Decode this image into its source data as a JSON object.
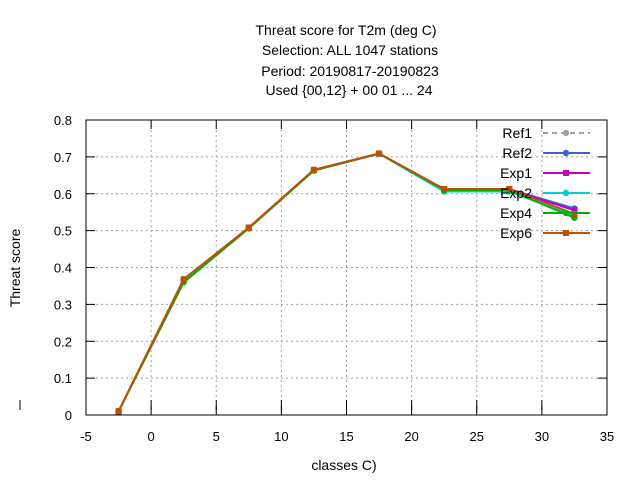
{
  "chart_data": {
    "type": "line",
    "title": [
      "Threat score  for T2m (deg C)",
      "Selection: ALL    1047 stations",
      "Period: 20190817-20190823",
      "Used {00,12} + 00 01 ... 24"
    ],
    "xlabel": "classes C)",
    "ylabel": "Threat score",
    "xlim": [
      -5,
      35
    ],
    "ylim": [
      0,
      0.8
    ],
    "xticks": [
      "-5",
      "0",
      "5",
      "10",
      "15",
      "20",
      "25",
      "30",
      "35"
    ],
    "yticks": [
      "0",
      "0.1",
      "0.2",
      "0.3",
      "0.4",
      "0.5",
      "0.6",
      "0.7",
      "0.8"
    ],
    "grid": true,
    "legend_position": "top-right",
    "x": [
      -2.5,
      2.5,
      7.5,
      12.5,
      17.5,
      22.5,
      27.5,
      32.5
    ],
    "series": [
      {
        "name": "Ref1",
        "color": "#a0a0a0",
        "dash": true,
        "marker": "circle",
        "values": [
          0.01,
          0.368,
          0.508,
          0.665,
          0.709,
          0.612,
          0.612,
          0.558
        ]
      },
      {
        "name": "Ref2",
        "color": "#4060d0",
        "dash": false,
        "marker": "circle",
        "values": [
          0.01,
          0.368,
          0.508,
          0.665,
          0.709,
          0.612,
          0.612,
          0.56
        ]
      },
      {
        "name": "Exp1",
        "color": "#c000c0",
        "dash": false,
        "marker": "square",
        "values": [
          0.01,
          0.366,
          0.508,
          0.664,
          0.709,
          0.612,
          0.612,
          0.555
        ]
      },
      {
        "name": "Exp2",
        "color": "#00d0d0",
        "dash": false,
        "marker": "circle",
        "values": [
          0.01,
          0.366,
          0.507,
          0.663,
          0.709,
          0.606,
          0.606,
          0.54
        ]
      },
      {
        "name": "Exp4",
        "color": "#00b000",
        "dash": false,
        "marker": "circle",
        "values": [
          0.01,
          0.36,
          0.506,
          0.663,
          0.709,
          0.61,
          0.61,
          0.535
        ]
      },
      {
        "name": "Exp6",
        "color": "#c05000",
        "dash": false,
        "marker": "square",
        "values": [
          0.01,
          0.368,
          0.508,
          0.665,
          0.709,
          0.613,
          0.613,
          0.545
        ]
      }
    ]
  }
}
